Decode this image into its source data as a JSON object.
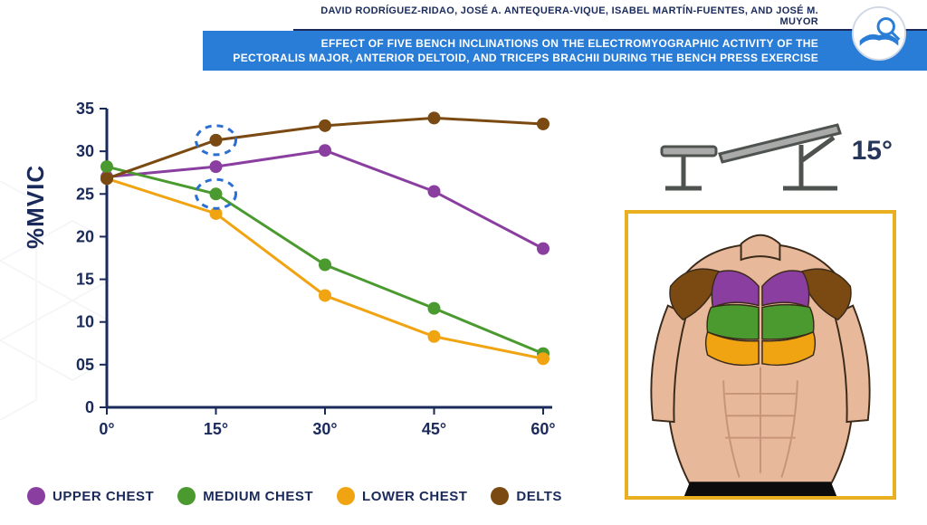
{
  "header": {
    "authors": "DAVID RODRÍGUEZ-RIDAO, JOSÉ A. ANTEQUERA-VIQUE, ISABEL MARTÍN-FUENTES, AND JOSÉ M. MUYOR",
    "title_line1": "EFFECT OF FIVE BENCH INCLINATIONS ON THE ELECTROMYOGRAPHIC ACTIVITY OF THE",
    "title_line2": "PECTORALIS MAJOR, ANTERIOR DELTOID, AND TRICEPS BRACHII DURING THE BENCH PRESS EXERCISE"
  },
  "bench_angle_label": "15°",
  "chart": {
    "type": "line",
    "ylabel": "%MVIC",
    "ylabel_fontsize": 26,
    "axis_color": "#1a2a5a",
    "axis_width": 3,
    "ylim": [
      0,
      35
    ],
    "ytick_step": 5,
    "yticks": [
      "0",
      "05",
      "10",
      "15",
      "20",
      "25",
      "30",
      "35"
    ],
    "xcategories": [
      "0°",
      "15°",
      "30°",
      "45°",
      "60°"
    ],
    "tick_fontsize": 18,
    "marker_radius": 7,
    "line_width": 3,
    "highlights": [
      {
        "x": 1,
        "series": "delts",
        "color": "#2b6fd3"
      },
      {
        "x": 1,
        "series": "medium_chest",
        "color": "#2b6fd3"
      }
    ],
    "series": {
      "upper_chest": {
        "label": "UPPER CHEST",
        "color": "#8a3fa0",
        "values": [
          27.0,
          28.2,
          30.1,
          25.3,
          18.6
        ]
      },
      "medium_chest": {
        "label": "MEDIUM CHEST",
        "color": "#4a9a2f",
        "values": [
          28.2,
          25.0,
          16.7,
          11.6,
          6.3
        ]
      },
      "lower_chest": {
        "label": "LOWER CHEST",
        "color": "#f0a412",
        "values": [
          26.8,
          22.7,
          13.1,
          8.3,
          5.7
        ]
      },
      "delts": {
        "label": "DELTS",
        "color": "#7a4a12",
        "values": [
          26.8,
          31.3,
          33.0,
          33.9,
          33.2
        ]
      }
    }
  },
  "legend_order": [
    "upper_chest",
    "medium_chest",
    "lower_chest",
    "delts"
  ],
  "anatomy_colors": {
    "upper_chest": "#8a3fa0",
    "medium_chest": "#4a9a2f",
    "lower_chest": "#f0a412",
    "delts": "#7a4a12",
    "skin": "#e7b89a",
    "skin_shadow": "#c89478",
    "shorts": "#0c0c0c",
    "border": "#3a2a1a"
  },
  "colors": {
    "primary_text": "#1a2a5a",
    "title_bg": "#2a7dd6",
    "anatomy_border": "#e8b020",
    "logo_bg": "#ffffff",
    "logo_book": "#2a7dd6",
    "bench_gray": "#a9aaa9",
    "bench_dark": "#4f534f"
  }
}
